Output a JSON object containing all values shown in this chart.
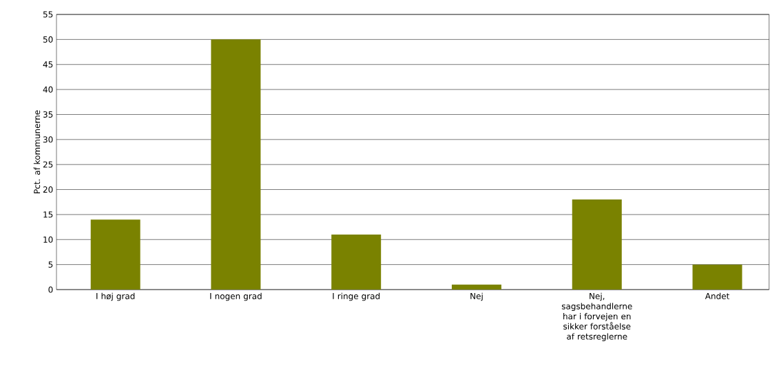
{
  "chart_data": {
    "type": "bar",
    "ylabel": "Pct. af kommunerne",
    "categories": [
      "I høj grad",
      "I nogen grad",
      "I ringe grad",
      "Nej",
      "Nej, sagsbehandlerne har i forvejen en sikker forståelse af retsreglerne",
      "Andet"
    ],
    "values": [
      14,
      50,
      11,
      1,
      18,
      5
    ],
    "color": "#7a8200",
    "ylim": [
      0,
      55
    ],
    "yticks": [
      0,
      5,
      10,
      15,
      20,
      25,
      30,
      35,
      40,
      45,
      50,
      55
    ],
    "grid": "y"
  }
}
